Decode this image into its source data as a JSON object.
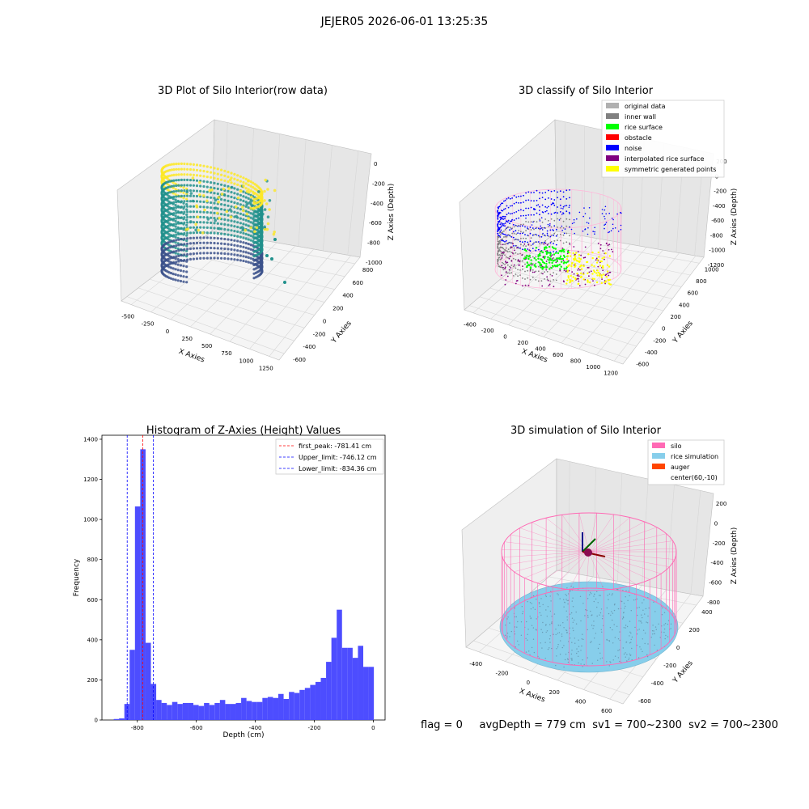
{
  "figure": {
    "suptitle": "JEJER05 2026-06-01 13:25:35",
    "footer": {
      "flag": "flag = 0",
      "avg_depth": "avgDepth = 779 cm",
      "sv1": "sv1 = 700~2300",
      "sv2": "sv2 = 700~2300"
    }
  },
  "chart_data": [
    {
      "type": "scatter",
      "projection": "3d",
      "title": "3D Plot of Silo Interior(row data)",
      "xlabel": "X Axies",
      "ylabel": "Y Axies",
      "zlabel": "Z Axies (Depth)",
      "xticks": [
        "-500",
        "-250",
        "0",
        "250",
        "500",
        "750",
        "1000",
        "1250"
      ],
      "yticks": [
        "-600",
        "-400",
        "-200",
        "0",
        "200",
        "400",
        "600",
        "800"
      ],
      "zticks": [
        "0",
        "-200",
        "-400",
        "-600",
        "-800",
        "-1000"
      ],
      "xlim": [
        -560,
        1290
      ],
      "ylim": [
        -680,
        900
      ],
      "zlim": [
        -1100,
        50
      ],
      "colormap": "viridis",
      "colors": {
        "low": "#3b518b",
        "mid": "#21918c",
        "high": "#fde725"
      }
    },
    {
      "type": "scatter",
      "projection": "3d",
      "title": "3D classify of Silo Interior",
      "xlabel": "X Axies",
      "ylabel": "Y Axies",
      "zlabel": "Z Axies (Depth)",
      "xticks": [
        "-400",
        "-200",
        "0",
        "200",
        "400",
        "600",
        "800",
        "1000",
        "1200"
      ],
      "yticks": [
        "-600",
        "-400",
        "-200",
        "0",
        "200",
        "400",
        "600",
        "800",
        "1000"
      ],
      "zticks": [
        "200",
        "0",
        "-200",
        "-400",
        "-600",
        "-800",
        "-1000",
        "-1200"
      ],
      "xlim": [
        -480,
        1260
      ],
      "ylim": [
        -680,
        1040
      ],
      "zlim": [
        -1280,
        300
      ],
      "legend_position": "top-right",
      "legend": [
        {
          "label": "original data",
          "color": "#b0b0b0"
        },
        {
          "label": "inner wall",
          "color": "#808080"
        },
        {
          "label": "rice surface",
          "color": "#00ff00"
        },
        {
          "label": "obstacle",
          "color": "#ff0000"
        },
        {
          "label": "noise",
          "color": "#0000ff"
        },
        {
          "label": "interpolated rice surface",
          "color": "#800080"
        },
        {
          "label": "symmetric generated points",
          "color": "#ffff00"
        }
      ]
    },
    {
      "type": "bar",
      "title": "Histogram of Z-Axies (Height) Values",
      "xlabel": "Depth (cm)",
      "ylabel": "Frequency",
      "xlim": [
        -920,
        40
      ],
      "ylim": [
        0,
        1420
      ],
      "xticks": [
        -800,
        -600,
        -400,
        -200,
        0
      ],
      "yticks": [
        0,
        200,
        400,
        600,
        800,
        1000,
        1200,
        1400
      ],
      "bar_color": "#4d4dff",
      "bin_width": 18,
      "bins_start": [
        -880,
        -862,
        -844,
        -826,
        -808,
        -790,
        -772,
        -754,
        -736,
        -718,
        -700,
        -682,
        -664,
        -646,
        -628,
        -610,
        -592,
        -574,
        -556,
        -538,
        -520,
        -502,
        -484,
        -466,
        -448,
        -430,
        -412,
        -394,
        -376,
        -358,
        -340,
        -322,
        -304,
        -286,
        -268,
        -250,
        -232,
        -214,
        -196,
        -178,
        -160,
        -142,
        -124,
        -106,
        -88,
        -70,
        -52,
        -34,
        -16
      ],
      "values": [
        5,
        8,
        80,
        350,
        1065,
        1350,
        385,
        180,
        100,
        85,
        75,
        90,
        80,
        85,
        85,
        75,
        70,
        85,
        75,
        85,
        100,
        80,
        80,
        85,
        110,
        95,
        90,
        90,
        110,
        115,
        110,
        130,
        105,
        140,
        135,
        150,
        160,
        175,
        190,
        210,
        290,
        410,
        550,
        360,
        360,
        310,
        370,
        265,
        265
      ],
      "lines": [
        {
          "label": "first_peak: -781.41 cm",
          "x": -781.41,
          "color": "#ff0000"
        },
        {
          "label": "Upper_limit: -746.12 cm",
          "x": -746.12,
          "color": "#0000ff"
        },
        {
          "label": "Lower_limit: -834.36 cm",
          "x": -834.36,
          "color": "#0000ff"
        }
      ],
      "legend_position": "top-right"
    },
    {
      "type": "scatter",
      "projection": "3d",
      "title": "3D simulation of Silo Interior",
      "xlabel": "X Axies",
      "ylabel": "Y Axies",
      "zlabel": "Z Axies (Depth)",
      "xticks": [
        "-400",
        "-200",
        "0",
        "200",
        "400",
        "600"
      ],
      "yticks": [
        "-600",
        "-400",
        "-200",
        "0",
        "200",
        "400"
      ],
      "zticks": [
        "200",
        "0",
        "-200",
        "-400",
        "-600",
        "-800"
      ],
      "xlim": [
        -480,
        680
      ],
      "ylim": [
        -660,
        460
      ],
      "zlim": [
        -880,
        300
      ],
      "legend_position": "top-right",
      "legend": [
        {
          "label": "silo",
          "color": "#ff69b4"
        },
        {
          "label": "rice simulation",
          "color": "#87ceeb"
        },
        {
          "label": "auger",
          "color": "#ff4500"
        },
        {
          "label": "center(60,-10)",
          "color": ""
        }
      ]
    }
  ]
}
